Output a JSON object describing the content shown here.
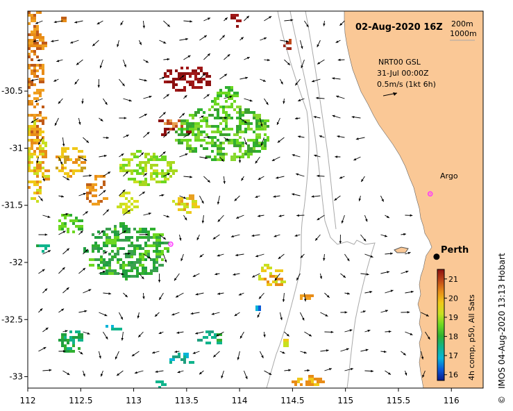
{
  "map": {
    "date_title": "02-Aug-2020 16Z",
    "contour_legend": [
      "200m",
      "1000m"
    ],
    "current_info": [
      "NRT00 GSL",
      "31-Jul 00:00Z",
      "0.5m/s (1kt 6h)"
    ],
    "places": {
      "argo": {
        "label": "Argo",
        "lon": 115.8,
        "lat": -31.4
      },
      "argo_offshore": {
        "lon": 113.35,
        "lat": -31.84
      },
      "perth": {
        "label": "Perth",
        "lon": 115.86,
        "lat": -31.95
      }
    },
    "lon_range": [
      112,
      116.3
    ],
    "lat_range": [
      -33.1,
      -29.8
    ],
    "x_ticks": [
      112,
      112.5,
      113,
      113.5,
      114,
      114.5,
      115,
      115.5,
      116
    ],
    "x_tick_labels": [
      "112",
      "112.5",
      "113",
      "113.5",
      "114",
      "114.5",
      "115",
      "115.5",
      "116"
    ],
    "y_ticks": [
      -30.5,
      -31,
      -31.5,
      -32,
      -32.5,
      -33
    ],
    "y_tick_labels": [
      "-30.5",
      "-31",
      "-31.5",
      "-32",
      "-32.5",
      "-33"
    ],
    "colorbar": {
      "ticks": [
        16,
        17,
        18,
        19,
        20,
        21
      ],
      "tick_labels": [
        "16",
        "17",
        "18",
        "19",
        "20",
        "21"
      ],
      "range": [
        15.7,
        21.5
      ],
      "label": "4h comp, p50, All Sats",
      "colors": [
        "#0a1a8c",
        "#0a5ad8",
        "#08b4d8",
        "#10b48c",
        "#30b030",
        "#6cd820",
        "#c8e020",
        "#f0c818",
        "#e88c18",
        "#c04818",
        "#8c1010"
      ]
    },
    "credit": "IMOS 04-Aug-2020 13:13 Hobart",
    "copyright_symbol": "©",
    "colors": {
      "land": "#fac896",
      "contour": "#a8a8a8",
      "argo": "#ff33ff",
      "arrow": "#000000"
    }
  }
}
